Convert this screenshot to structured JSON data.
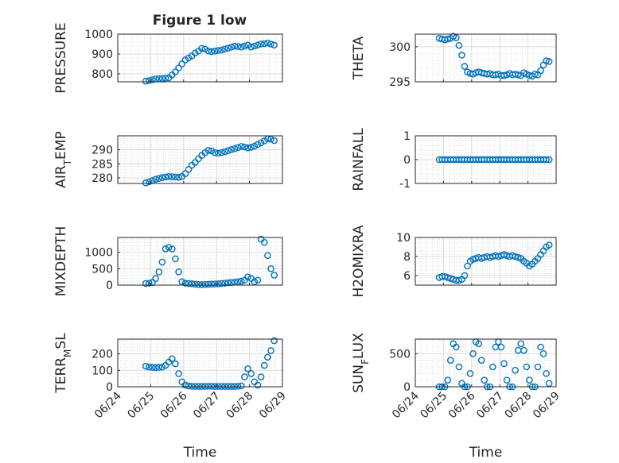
{
  "figure": {
    "title": "Figure 1 low",
    "marker_color": "#0072BD"
  },
  "chart_data": [
    {
      "type": "scatter",
      "ylabel": "PRESSURE",
      "ylim": [
        760,
        1000
      ],
      "yticks": [
        800,
        900,
        1000
      ],
      "xlim": [
        "06/24",
        "06/29"
      ],
      "xticks": [
        "06/24",
        "06/25",
        "06/26",
        "06/27",
        "06/28",
        "06/29"
      ],
      "xticklabels_shown": false,
      "grid": true,
      "minor_grid": true,
      "marker": "open-circle",
      "series": [
        {
          "x": [
            24.85,
            24.95,
            25.05,
            25.15,
            25.25,
            25.35,
            25.45,
            25.55,
            25.65,
            25.75,
            25.85,
            25.95,
            26.05,
            26.15,
            26.25,
            26.35,
            26.45,
            26.55,
            26.65,
            26.75,
            26.85,
            26.95,
            27.05,
            27.15,
            27.25,
            27.35,
            27.45,
            27.55,
            27.65,
            27.75,
            27.85,
            27.95,
            28.05,
            28.15,
            28.25,
            28.35,
            28.45,
            28.55,
            28.65,
            28.75
          ],
          "y": [
            763,
            766,
            770,
            774,
            776,
            777,
            778,
            780,
            795,
            810,
            830,
            850,
            870,
            880,
            890,
            905,
            915,
            928,
            925,
            915,
            912,
            915,
            918,
            920,
            925,
            930,
            935,
            940,
            938,
            935,
            940,
            945,
            935,
            940,
            945,
            950,
            952,
            955,
            950,
            945
          ]
        }
      ]
    },
    {
      "type": "scatter",
      "ylabel": "THETA",
      "ylim": [
        295,
        301.8
      ],
      "yticks": [
        295,
        300
      ],
      "xlim": [
        "06/24",
        "06/29"
      ],
      "xticks": [
        "06/24",
        "06/25",
        "06/26",
        "06/27",
        "06/28",
        "06/29"
      ],
      "xticklabels_shown": false,
      "grid": true,
      "minor_grid": true,
      "marker": "open-circle",
      "series": [
        {
          "x": [
            24.85,
            24.95,
            25.05,
            25.15,
            25.25,
            25.35,
            25.45,
            25.55,
            25.65,
            25.75,
            25.85,
            25.95,
            26.05,
            26.15,
            26.25,
            26.35,
            26.45,
            26.55,
            26.65,
            26.75,
            26.85,
            26.95,
            27.05,
            27.15,
            27.25,
            27.35,
            27.45,
            27.55,
            27.65,
            27.75,
            27.85,
            27.95,
            28.05,
            28.15,
            28.25,
            28.35,
            28.45,
            28.55,
            28.65,
            28.75
          ],
          "y": [
            301.2,
            301.1,
            301.0,
            301.1,
            301.2,
            301.5,
            301.3,
            300.2,
            298.8,
            297.2,
            296.4,
            296.2,
            296.1,
            296.3,
            296.4,
            296.3,
            296.2,
            296.1,
            296.2,
            296.0,
            296.0,
            296.1,
            295.9,
            295.9,
            296.0,
            296.2,
            296.0,
            296.1,
            296.0,
            295.9,
            296.3,
            296.1,
            295.9,
            295.8,
            296.1,
            296.0,
            296.6,
            297.4,
            298.0,
            297.9
          ]
        }
      ]
    },
    {
      "type": "scatter",
      "ylabel": "AIR_TEMP",
      "ylim": [
        278,
        295
      ],
      "yticks": [
        280,
        285,
        290
      ],
      "xlim": [
        "06/24",
        "06/29"
      ],
      "xticks": [
        "06/24",
        "06/25",
        "06/26",
        "06/27",
        "06/28",
        "06/29"
      ],
      "xticklabels_shown": false,
      "grid": true,
      "minor_grid": true,
      "marker": "open-circle",
      "series": [
        {
          "x": [
            24.85,
            24.95,
            25.05,
            25.15,
            25.25,
            25.35,
            25.45,
            25.55,
            25.65,
            25.75,
            25.85,
            25.95,
            26.05,
            26.15,
            26.25,
            26.35,
            26.45,
            26.55,
            26.65,
            26.75,
            26.85,
            26.95,
            27.05,
            27.15,
            27.25,
            27.35,
            27.45,
            27.55,
            27.65,
            27.75,
            27.85,
            27.95,
            28.05,
            28.15,
            28.25,
            28.35,
            28.45,
            28.55,
            28.65,
            28.75
          ],
          "y": [
            278.2,
            278.6,
            279.0,
            279.5,
            279.8,
            280.1,
            280.3,
            280.5,
            280.4,
            280.3,
            280.2,
            280.5,
            281.5,
            283.0,
            284.5,
            285.5,
            286.8,
            288.0,
            289.0,
            289.8,
            289.6,
            289.0,
            288.8,
            289.0,
            289.3,
            289.7,
            290.1,
            290.4,
            290.8,
            291.2,
            291.0,
            290.7,
            290.9,
            291.3,
            291.9,
            292.5,
            293.2,
            293.9,
            293.8,
            293.3
          ]
        }
      ]
    },
    {
      "type": "scatter",
      "ylabel": "RAINFALL",
      "ylim": [
        -1,
        1
      ],
      "yticks": [
        -1,
        0,
        1
      ],
      "xlim": [
        "06/24",
        "06/29"
      ],
      "xticks": [
        "06/24",
        "06/25",
        "06/26",
        "06/27",
        "06/28",
        "06/29"
      ],
      "xticklabels_shown": false,
      "grid": true,
      "minor_grid": true,
      "marker": "open-circle",
      "series": [
        {
          "x": [
            24.85,
            24.95,
            25.05,
            25.15,
            25.25,
            25.35,
            25.45,
            25.55,
            25.65,
            25.75,
            25.85,
            25.95,
            26.05,
            26.15,
            26.25,
            26.35,
            26.45,
            26.55,
            26.65,
            26.75,
            26.85,
            26.95,
            27.05,
            27.15,
            27.25,
            27.35,
            27.45,
            27.55,
            27.65,
            27.75,
            27.85,
            27.95,
            28.05,
            28.15,
            28.25,
            28.35,
            28.45,
            28.55,
            28.65,
            28.75
          ],
          "y": [
            0,
            0,
            0,
            0,
            0,
            0,
            0,
            0,
            0,
            0,
            0,
            0,
            0,
            0,
            0,
            0,
            0,
            0,
            0,
            0,
            0,
            0,
            0,
            0,
            0,
            0,
            0,
            0,
            0,
            0,
            0,
            0,
            0,
            0,
            0,
            0,
            0,
            0,
            0,
            0
          ]
        }
      ]
    },
    {
      "type": "scatter",
      "ylabel": "MIXDEPTH",
      "ylim": [
        0,
        1450
      ],
      "yticks": [
        0,
        500,
        1000
      ],
      "xlim": [
        "06/24",
        "06/29"
      ],
      "xticks": [
        "06/24",
        "06/25",
        "06/26",
        "06/27",
        "06/28",
        "06/29"
      ],
      "xticklabels_shown": false,
      "grid": true,
      "minor_grid": true,
      "marker": "open-circle",
      "series": [
        {
          "x": [
            24.85,
            24.95,
            25.05,
            25.15,
            25.25,
            25.35,
            25.45,
            25.55,
            25.65,
            25.75,
            25.85,
            25.95,
            26.05,
            26.15,
            26.25,
            26.35,
            26.45,
            26.55,
            26.65,
            26.75,
            26.85,
            26.95,
            27.05,
            27.15,
            27.25,
            27.35,
            27.45,
            27.55,
            27.65,
            27.75,
            27.85,
            27.95,
            28.05,
            28.15,
            28.25,
            28.35,
            28.45,
            28.55,
            28.65,
            28.75
          ],
          "y": [
            50,
            60,
            80,
            200,
            400,
            700,
            1100,
            1150,
            1100,
            800,
            400,
            100,
            60,
            50,
            40,
            30,
            20,
            15,
            20,
            25,
            30,
            35,
            40,
            50,
            60,
            70,
            80,
            90,
            100,
            120,
            150,
            250,
            200,
            100,
            150,
            1400,
            1300,
            900,
            500,
            300
          ]
        }
      ]
    },
    {
      "type": "scatter",
      "ylabel": "H2OMIXRA",
      "ylim": [
        5,
        10
      ],
      "yticks": [
        6,
        8,
        10
      ],
      "xlim": [
        "06/24",
        "06/29"
      ],
      "xticks": [
        "06/24",
        "06/25",
        "06/26",
        "06/27",
        "06/28",
        "06/29"
      ],
      "xticklabels_shown": false,
      "grid": true,
      "minor_grid": true,
      "marker": "open-circle",
      "series": [
        {
          "x": [
            24.85,
            24.95,
            25.05,
            25.15,
            25.25,
            25.35,
            25.45,
            25.55,
            25.65,
            25.75,
            25.85,
            25.95,
            26.05,
            26.15,
            26.25,
            26.35,
            26.45,
            26.55,
            26.65,
            26.75,
            26.85,
            26.95,
            27.05,
            27.15,
            27.25,
            27.35,
            27.45,
            27.55,
            27.65,
            27.75,
            27.85,
            27.95,
            28.05,
            28.15,
            28.25,
            28.35,
            28.45,
            28.55,
            28.65,
            28.75
          ],
          "y": [
            5.8,
            5.9,
            5.9,
            5.8,
            5.7,
            5.6,
            5.5,
            5.5,
            5.6,
            6.0,
            7.0,
            7.5,
            7.7,
            7.8,
            7.9,
            7.8,
            7.9,
            8.0,
            7.9,
            8.0,
            8.1,
            8.0,
            8.1,
            8.2,
            8.1,
            8.0,
            8.1,
            8.0,
            7.9,
            7.8,
            7.5,
            7.3,
            7.0,
            7.2,
            7.5,
            7.8,
            8.2,
            8.6,
            9.0,
            9.2
          ]
        }
      ]
    },
    {
      "type": "scatter",
      "ylabel": "TERR_MSL",
      "ylim": [
        0,
        290
      ],
      "yticks": [
        0,
        100,
        200
      ],
      "xlim": [
        "06/24",
        "06/29"
      ],
      "xticks": [
        "06/24",
        "06/25",
        "06/26",
        "06/27",
        "06/28",
        "06/29"
      ],
      "xticklabels_shown": true,
      "xlabel": "Time",
      "grid": true,
      "minor_grid": true,
      "marker": "open-circle",
      "series": [
        {
          "x": [
            24.85,
            24.95,
            25.05,
            25.15,
            25.25,
            25.35,
            25.45,
            25.55,
            25.65,
            25.75,
            25.85,
            25.95,
            26.05,
            26.15,
            26.25,
            26.35,
            26.45,
            26.55,
            26.65,
            26.75,
            26.85,
            26.95,
            27.05,
            27.15,
            27.25,
            27.35,
            27.45,
            27.55,
            27.65,
            27.75,
            27.85,
            27.95,
            28.05,
            28.15,
            28.25,
            28.35,
            28.45,
            28.55,
            28.65,
            28.75
          ],
          "y": [
            125,
            120,
            118,
            117,
            118,
            120,
            130,
            150,
            170,
            140,
            80,
            30,
            10,
            5,
            3,
            2,
            2,
            2,
            2,
            3,
            3,
            2,
            2,
            2,
            2,
            2,
            2,
            2,
            3,
            5,
            60,
            110,
            80,
            30,
            10,
            60,
            130,
            180,
            220,
            280
          ]
        }
      ]
    },
    {
      "type": "scatter",
      "ylabel": "SUN_FLUX",
      "ylim": [
        0,
        720
      ],
      "yticks": [
        0,
        500
      ],
      "xlim": [
        "06/24",
        "06/29"
      ],
      "xticks": [
        "06/24",
        "06/25",
        "06/26",
        "06/27",
        "06/28",
        "06/29"
      ],
      "xticklabels_shown": true,
      "xlabel": "Time",
      "grid": true,
      "minor_grid": true,
      "marker": "open-circle",
      "series": [
        {
          "x": [
            24.85,
            24.95,
            25.05,
            25.15,
            25.25,
            25.35,
            25.45,
            25.55,
            25.65,
            25.75,
            25.85,
            25.95,
            26.05,
            26.15,
            26.25,
            26.35,
            26.45,
            26.55,
            26.65,
            26.75,
            26.85,
            26.95,
            27.05,
            27.15,
            27.25,
            27.35,
            27.45,
            27.55,
            27.65,
            27.75,
            27.85,
            27.95,
            28.05,
            28.15,
            28.25,
            28.35,
            28.45,
            28.55,
            28.65,
            28.75
          ],
          "y": [
            0,
            0,
            0,
            100,
            400,
            650,
            600,
            300,
            50,
            0,
            0,
            200,
            500,
            680,
            650,
            400,
            100,
            0,
            0,
            300,
            600,
            680,
            600,
            350,
            100,
            0,
            0,
            250,
            550,
            650,
            550,
            300,
            100,
            0,
            0,
            300,
            600,
            500,
            200,
            50
          ]
        }
      ]
    }
  ]
}
